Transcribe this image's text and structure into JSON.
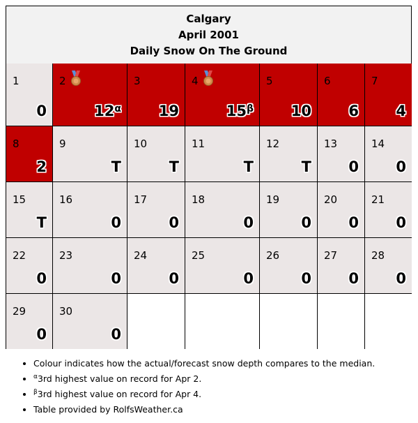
{
  "title": {
    "city": "Calgary",
    "month": "April 2001",
    "subtitle": "Daily Snow On The Ground"
  },
  "colors": {
    "above_median": "#c00000",
    "median": "#ebe6e6",
    "empty": "#ffffff"
  },
  "chart_data": {
    "type": "table",
    "columns": 7,
    "days": [
      {
        "day": "1",
        "value": "0",
        "level": "median"
      },
      {
        "day": "2",
        "value": "12",
        "note": "α",
        "level": "above",
        "medal": "3rd-place-medal-icon"
      },
      {
        "day": "3",
        "value": "19",
        "level": "above"
      },
      {
        "day": "4",
        "value": "15",
        "note": "β",
        "level": "above",
        "medal": "3rd-place-medal-icon"
      },
      {
        "day": "5",
        "value": "10",
        "level": "above"
      },
      {
        "day": "6",
        "value": "6",
        "level": "above"
      },
      {
        "day": "7",
        "value": "4",
        "level": "above"
      },
      {
        "day": "8",
        "value": "2",
        "level": "above"
      },
      {
        "day": "9",
        "value": "T",
        "level": "median"
      },
      {
        "day": "10",
        "value": "T",
        "level": "median"
      },
      {
        "day": "11",
        "value": "T",
        "level": "median"
      },
      {
        "day": "12",
        "value": "T",
        "level": "median"
      },
      {
        "day": "13",
        "value": "0",
        "level": "median"
      },
      {
        "day": "14",
        "value": "0",
        "level": "median"
      },
      {
        "day": "15",
        "value": "T",
        "level": "median"
      },
      {
        "day": "16",
        "value": "0",
        "level": "median"
      },
      {
        "day": "17",
        "value": "0",
        "level": "median"
      },
      {
        "day": "18",
        "value": "0",
        "level": "median"
      },
      {
        "day": "19",
        "value": "0",
        "level": "median"
      },
      {
        "day": "20",
        "value": "0",
        "level": "median"
      },
      {
        "day": "21",
        "value": "0",
        "level": "median"
      },
      {
        "day": "22",
        "value": "0",
        "level": "median"
      },
      {
        "day": "23",
        "value": "0",
        "level": "median"
      },
      {
        "day": "24",
        "value": "0",
        "level": "median"
      },
      {
        "day": "25",
        "value": "0",
        "level": "median"
      },
      {
        "day": "26",
        "value": "0",
        "level": "median"
      },
      {
        "day": "27",
        "value": "0",
        "level": "median"
      },
      {
        "day": "28",
        "value": "0",
        "level": "median"
      },
      {
        "day": "29",
        "value": "0",
        "level": "median"
      },
      {
        "day": "30",
        "value": "0",
        "level": "median"
      }
    ]
  },
  "notes": {
    "colour": "Colour indicates how the actual/forecast snow depth compares to the median.",
    "alpha_mark": "α",
    "alpha_text": "3rd highest value on record for Apr 2.",
    "beta_mark": "β",
    "beta_text": "3rd highest value on record for Apr 4.",
    "credit": "Table provided by RolfsWeather.ca"
  }
}
